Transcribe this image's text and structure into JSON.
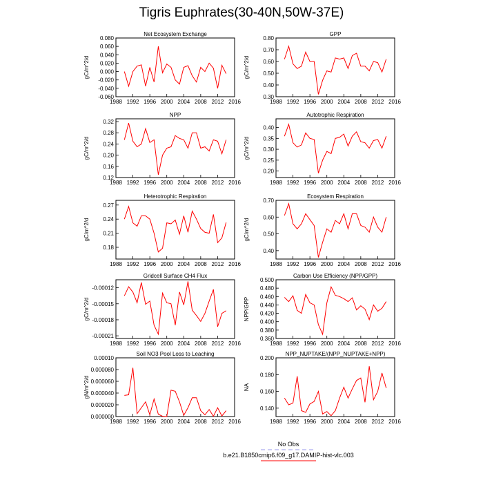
{
  "title": "Tigris Euphrates(30-40N,50W-37E)",
  "legend": [
    {
      "name": "No Obs",
      "color": "#9999ee",
      "dashed": true
    },
    {
      "name": "b.e21.B1850cmip6.f09_g17.DAMIP-hist-vlc.003",
      "color": "#ff0000",
      "dashed": false
    }
  ],
  "chart_data": [
    {
      "type": "line",
      "title": "Net Ecosystem Exchange",
      "ylabel": "gC/m^2/d",
      "color": "#ff0000",
      "x": [
        1990,
        1991,
        1992,
        1993,
        1994,
        1995,
        1996,
        1997,
        1998,
        1999,
        2000,
        2001,
        2002,
        2003,
        2004,
        2005,
        2006,
        2007,
        2008,
        2009,
        2010,
        2011,
        2012,
        2013,
        2014
      ],
      "values": [
        0.0,
        -0.035,
        0.0,
        0.013,
        0.016,
        -0.035,
        0.01,
        -0.025,
        0.06,
        -0.003,
        0.018,
        0.01,
        -0.02,
        -0.03,
        0.01,
        0.014,
        -0.01,
        -0.025,
        0.01,
        0.0,
        0.02,
        0.008,
        -0.04,
        0.015,
        -0.005
      ],
      "xlim": [
        1988,
        2016
      ],
      "xticks": [
        1988,
        1992,
        1996,
        2000,
        2004,
        2008,
        2012,
        2016
      ],
      "ylim": [
        -0.06,
        0.08
      ],
      "yticks": [
        {
          "value": -0.06,
          "label": "-0.060"
        },
        {
          "value": -0.04,
          "label": "-0.040"
        },
        {
          "value": -0.02,
          "label": "-0.020"
        },
        {
          "value": 0,
          "label": "0.000"
        },
        {
          "value": 0.02,
          "label": "0.020"
        },
        {
          "value": 0.04,
          "label": "0.040"
        },
        {
          "value": 0.06,
          "label": "0.060"
        },
        {
          "value": 0.08,
          "label": "0.080"
        }
      ]
    },
    {
      "type": "line",
      "title": "GPP",
      "ylabel": "gC/m^2/d",
      "color": "#ff0000",
      "x": [
        1990,
        1991,
        1992,
        1993,
        1994,
        1995,
        1996,
        1997,
        1998,
        1999,
        2000,
        2001,
        2002,
        2003,
        2004,
        2005,
        2006,
        2007,
        2008,
        2009,
        2010,
        2011,
        2012,
        2013,
        2014
      ],
      "values": [
        0.62,
        0.73,
        0.58,
        0.54,
        0.56,
        0.68,
        0.6,
        0.6,
        0.32,
        0.44,
        0.52,
        0.51,
        0.63,
        0.62,
        0.63,
        0.54,
        0.65,
        0.67,
        0.56,
        0.56,
        0.52,
        0.6,
        0.59,
        0.51,
        0.62
      ],
      "xlim": [
        1988,
        2016
      ],
      "xticks": [
        1988,
        1992,
        1996,
        2000,
        2004,
        2008,
        2012,
        2016
      ],
      "ylim": [
        0.3,
        0.8
      ],
      "yticks": [
        {
          "value": 0.3,
          "label": "0.30"
        },
        {
          "value": 0.4,
          "label": "0.40"
        },
        {
          "value": 0.5,
          "label": "0.50"
        },
        {
          "value": 0.6,
          "label": "0.60"
        },
        {
          "value": 0.7,
          "label": "0.70"
        },
        {
          "value": 0.8,
          "label": "0.80"
        }
      ]
    },
    {
      "type": "line",
      "title": "NPP",
      "ylabel": "gC/m^2/d",
      "color": "#ff0000",
      "x": [
        1990,
        1991,
        1992,
        1993,
        1994,
        1995,
        1996,
        1997,
        1998,
        1999,
        2000,
        2001,
        2002,
        2003,
        2004,
        2005,
        2006,
        2007,
        2008,
        2009,
        2010,
        2011,
        2012,
        2013,
        2014
      ],
      "values": [
        0.255,
        0.315,
        0.25,
        0.23,
        0.24,
        0.295,
        0.245,
        0.255,
        0.13,
        0.2,
        0.225,
        0.23,
        0.27,
        0.26,
        0.255,
        0.225,
        0.28,
        0.28,
        0.225,
        0.23,
        0.215,
        0.255,
        0.25,
        0.205,
        0.255
      ],
      "xlim": [
        1988,
        2016
      ],
      "xticks": [
        1988,
        1992,
        1996,
        2000,
        2004,
        2008,
        2012,
        2016
      ],
      "ylim": [
        0.12,
        0.33
      ],
      "yticks": [
        0.12,
        0.16,
        {
          "value": 0.2,
          "label": "0.20"
        },
        0.24,
        0.28,
        0.32
      ]
    },
    {
      "type": "line",
      "title": "Autotrophic Respiration",
      "ylabel": "gC/m^2/d",
      "color": "#ff0000",
      "x": [
        1990,
        1991,
        1992,
        1993,
        1994,
        1995,
        1996,
        1997,
        1998,
        1999,
        2000,
        2001,
        2002,
        2003,
        2004,
        2005,
        2006,
        2007,
        2008,
        2009,
        2010,
        2011,
        2012,
        2013,
        2014
      ],
      "values": [
        0.36,
        0.415,
        0.33,
        0.31,
        0.32,
        0.375,
        0.35,
        0.345,
        0.19,
        0.25,
        0.29,
        0.28,
        0.35,
        0.355,
        0.37,
        0.315,
        0.36,
        0.38,
        0.335,
        0.33,
        0.305,
        0.34,
        0.345,
        0.305,
        0.36
      ],
      "xlim": [
        1988,
        2016
      ],
      "xticks": [
        1988,
        1992,
        1996,
        2000,
        2004,
        2008,
        2012,
        2016
      ],
      "ylim": [
        0.17,
        0.44
      ],
      "yticks": [
        {
          "value": 0.2,
          "label": "0.20"
        },
        0.25,
        {
          "value": 0.3,
          "label": "0.30"
        },
        0.35,
        {
          "value": 0.4,
          "label": "0.40"
        }
      ]
    },
    {
      "type": "line",
      "title": "Heterotrophic Respiration",
      "ylabel": "gC/m^2/d",
      "color": "#ff0000",
      "x": [
        1990,
        1991,
        1992,
        1993,
        1994,
        1995,
        1996,
        1997,
        1998,
        1999,
        2000,
        2001,
        2002,
        2003,
        2004,
        2005,
        2006,
        2007,
        2008,
        2009,
        2010,
        2011,
        2012,
        2013,
        2014
      ],
      "values": [
        0.24,
        0.267,
        0.232,
        0.225,
        0.247,
        0.247,
        0.24,
        0.21,
        0.17,
        0.178,
        0.232,
        0.23,
        0.238,
        0.208,
        0.247,
        0.212,
        0.257,
        0.24,
        0.22,
        0.212,
        0.21,
        0.25,
        0.19,
        0.2,
        0.233
      ],
      "xlim": [
        1988,
        2016
      ],
      "xticks": [
        1988,
        1992,
        1996,
        2000,
        2004,
        2008,
        2012,
        2016
      ],
      "ylim": [
        0.155,
        0.28
      ],
      "yticks": [
        0.18,
        0.21,
        0.24,
        0.27
      ]
    },
    {
      "type": "line",
      "title": "Ecosystem Respiration",
      "ylabel": "gC/m^2/d",
      "color": "#ff0000",
      "x": [
        1990,
        1991,
        1992,
        1993,
        1994,
        1995,
        1996,
        1997,
        1998,
        1999,
        2000,
        2001,
        2002,
        2003,
        2004,
        2005,
        2006,
        2007,
        2008,
        2009,
        2010,
        2011,
        2012,
        2013,
        2014
      ],
      "values": [
        0.61,
        0.68,
        0.56,
        0.53,
        0.56,
        0.62,
        0.585,
        0.55,
        0.36,
        0.45,
        0.53,
        0.51,
        0.58,
        0.56,
        0.62,
        0.53,
        0.62,
        0.62,
        0.55,
        0.54,
        0.51,
        0.6,
        0.54,
        0.51,
        0.6
      ],
      "xlim": [
        1988,
        2016
      ],
      "xticks": [
        1988,
        1992,
        1996,
        2000,
        2004,
        2008,
        2012,
        2016
      ],
      "ylim": [
        0.35,
        0.7
      ],
      "yticks": [
        {
          "value": 0.4,
          "label": "0.40"
        },
        {
          "value": 0.5,
          "label": "0.50"
        },
        {
          "value": 0.6,
          "label": "0.60"
        },
        {
          "value": 0.7,
          "label": "0.70"
        }
      ]
    },
    {
      "type": "line",
      "title": "Gridcell Surface CH4 Flux",
      "ylabel": "gC/m^2/d",
      "color": "#ff0000",
      "x": [
        1990,
        1991,
        1992,
        1993,
        1994,
        1995,
        1996,
        1997,
        1998,
        1999,
        2000,
        2001,
        2002,
        2003,
        2004,
        2005,
        2006,
        2007,
        2008,
        2009,
        2010,
        2011,
        2012,
        2013,
        2014
      ],
      "values": [
        -0.000135,
        -0.000118,
        -0.000128,
        -0.000148,
        -0.00011,
        -0.000151,
        -0.000145,
        -0.00019,
        -0.000207,
        -0.00013,
        -0.000148,
        -0.00015,
        -0.00019,
        -0.000128,
        -0.000152,
        -0.000108,
        -0.000162,
        -0.000172,
        -0.000183,
        -0.000168,
        -0.000145,
        -0.000123,
        -0.000193,
        -0.000168,
        -0.000163
      ],
      "xlim": [
        1988,
        2016
      ],
      "xticks": [
        1988,
        1992,
        1996,
        2000,
        2004,
        2008,
        2012,
        2016
      ],
      "ylim": [
        -0.000215,
        -0.000105
      ],
      "yticks": [
        {
          "value": -0.00021,
          "label": "-0.00021"
        },
        {
          "value": -0.00018,
          "label": "-0.00018"
        },
        {
          "value": -0.00015,
          "label": "-0.00015"
        },
        {
          "value": -0.00012,
          "label": "-0.00012"
        }
      ]
    },
    {
      "type": "line",
      "title": "Carbon Use Efficiency (NPP/GPP)",
      "ylabel": "NPP/GPP",
      "color": "#ff0000",
      "x": [
        1990,
        1991,
        1992,
        1993,
        1994,
        1995,
        1996,
        1997,
        1998,
        1999,
        2000,
        2001,
        2002,
        2003,
        2004,
        2005,
        2006,
        2007,
        2008,
        2009,
        2010,
        2011,
        2012,
        2013,
        2014
      ],
      "values": [
        0.458,
        0.448,
        0.462,
        0.427,
        0.42,
        0.465,
        0.445,
        0.44,
        0.393,
        0.37,
        0.445,
        0.483,
        0.463,
        0.46,
        0.455,
        0.448,
        0.457,
        0.428,
        0.438,
        0.43,
        0.405,
        0.44,
        0.425,
        0.432,
        0.448
      ],
      "xlim": [
        1988,
        2016
      ],
      "xticks": [
        1988,
        1992,
        1996,
        2000,
        2004,
        2008,
        2012,
        2016
      ],
      "ylim": [
        0.36,
        0.5
      ],
      "yticks": [
        {
          "value": 0.36,
          "label": "0.360"
        },
        {
          "value": 0.38,
          "label": "0.380"
        },
        {
          "value": 0.4,
          "label": "0.400"
        },
        {
          "value": 0.42,
          "label": "0.420"
        },
        {
          "value": 0.44,
          "label": "0.440"
        },
        {
          "value": 0.46,
          "label": "0.460"
        },
        {
          "value": 0.48,
          "label": "0.480"
        },
        {
          "value": 0.5,
          "label": "0.500"
        }
      ]
    },
    {
      "type": "line",
      "title": "Soil NO3 Pool Loss to Leaching",
      "ylabel": "gN/m^2/d",
      "color": "#ff0000",
      "x": [
        1990,
        1991,
        1992,
        1993,
        1994,
        1995,
        1996,
        1997,
        1998,
        1999,
        2000,
        2001,
        2002,
        2003,
        2004,
        2005,
        2006,
        2007,
        2008,
        2009,
        2010,
        2011,
        2012,
        2013,
        2014
      ],
      "values": [
        3.6e-05,
        3.7e-05,
        8.3e-05,
        5e-06,
        1.5e-05,
        2.5e-05,
        3e-06,
        3e-05,
        4e-06,
        5e-07,
        0.0,
        4.5e-05,
        4.3e-05,
        2.5e-05,
        2e-06,
        1.5e-05,
        3.2e-05,
        3.2e-05,
        1e-05,
        3e-06,
        1.2e-05,
        5e-07,
        1.5e-05,
        1e-06,
        1e-05
      ],
      "xlim": [
        1988,
        2016
      ],
      "xticks": [
        1988,
        1992,
        1996,
        2000,
        2004,
        2008,
        2012,
        2016
      ],
      "ylim": [
        0,
        0.0001
      ],
      "yticks": [
        {
          "value": 0,
          "label": "0.000000"
        },
        {
          "value": 2e-05,
          "label": "0.000020"
        },
        {
          "value": 4e-05,
          "label": "0.000040"
        },
        {
          "value": 6e-05,
          "label": "0.000060"
        },
        {
          "value": 8e-05,
          "label": "0.000080"
        },
        {
          "value": 0.0001,
          "label": "0.00010"
        }
      ]
    },
    {
      "type": "line",
      "title": "NPP_NUPTAKE/(NPP_NUPTAKE+NPP)",
      "ylabel": "NA",
      "color": "#ff0000",
      "x": [
        1990,
        1991,
        1992,
        1993,
        1994,
        1995,
        1996,
        1997,
        1998,
        1999,
        2000,
        2001,
        2002,
        2003,
        2004,
        2005,
        2006,
        2007,
        2008,
        2009,
        2010,
        2011,
        2012,
        2013,
        2014
      ],
      "values": [
        0.152,
        0.144,
        0.146,
        0.178,
        0.137,
        0.135,
        0.145,
        0.148,
        0.16,
        0.133,
        0.136,
        0.131,
        0.137,
        0.152,
        0.165,
        0.152,
        0.163,
        0.173,
        0.176,
        0.147,
        0.19,
        0.15,
        0.16,
        0.182,
        0.164
      ],
      "xlim": [
        1988,
        2016
      ],
      "xticks": [
        1988,
        1992,
        1996,
        2000,
        2004,
        2008,
        2012,
        2016
      ],
      "ylim": [
        0.13,
        0.2
      ],
      "yticks": [
        {
          "value": 0.14,
          "label": "0.140"
        },
        {
          "value": 0.16,
          "label": "0.160"
        },
        {
          "value": 0.18,
          "label": "0.180"
        },
        {
          "value": 0.2,
          "label": "0.200"
        }
      ]
    }
  ]
}
